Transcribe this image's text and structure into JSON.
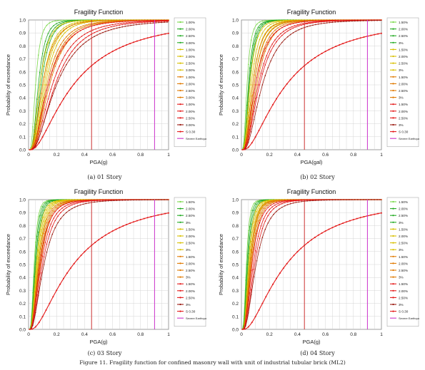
{
  "figure_caption": "Figure 11. Fragility function for confined masonry wall with unit of industrial tubular brick (ML2)",
  "panels": [
    {
      "id": "a",
      "caption": "(a)   01 Story"
    },
    {
      "id": "b",
      "caption": "(b)   02 Story"
    },
    {
      "id": "c",
      "caption": "(c)   03 Story"
    },
    {
      "id": "d",
      "caption": "(d)   04 Story"
    }
  ],
  "colors": {
    "light_green": "#7ad94a",
    "green": "#22aa22",
    "yellow": "#d8c000",
    "orange": "#e07a00",
    "red": "#e41818",
    "dark_red": "#9a1a10",
    "vertical_line": "#cc3333",
    "severe_earthquake": "#cc33cc",
    "grid": "#cccccc"
  },
  "chart_data": [
    {
      "type": "line",
      "title": "Fragility Function",
      "xlabel": "PGA(g)",
      "ylabel": "Probability of exceedance",
      "xlim": [
        0,
        1
      ],
      "ylim": [
        0,
        1
      ],
      "x_ticks": [
        "0",
        "0.2",
        "0.4",
        "0.6",
        "0.8",
        "1"
      ],
      "y_ticks": [
        "0.0",
        "0.1",
        "0.2",
        "0.3",
        "0.4",
        "0.5",
        "0.6",
        "0.7",
        "0.8",
        "0.9",
        "1.0"
      ],
      "grid": true,
      "legend_position": "right",
      "vertical_lines": [
        {
          "x": 0.45,
          "color_key": "vertical_line"
        },
        {
          "x": 0.9,
          "color_key": "severe_earthquake"
        }
      ],
      "series": [
        {
          "name": "1.00%",
          "color_key": "light_green",
          "median": 0.05,
          "beta": 0.55
        },
        {
          "name": "2.00%",
          "color_key": "green",
          "median": 0.07,
          "beta": 0.55
        },
        {
          "name": "2.50%",
          "color_key": "green",
          "median": 0.08,
          "beta": 0.55
        },
        {
          "name": "3.00%",
          "color_key": "green",
          "median": 0.09,
          "beta": 0.55
        },
        {
          "name": "1.00%",
          "color_key": "yellow",
          "median": 0.08,
          "beta": 0.6
        },
        {
          "name": "2.00%",
          "color_key": "yellow",
          "median": 0.1,
          "beta": 0.6
        },
        {
          "name": "2.50%",
          "color_key": "yellow",
          "median": 0.11,
          "beta": 0.6
        },
        {
          "name": "3.00%",
          "color_key": "yellow",
          "median": 0.12,
          "beta": 0.6
        },
        {
          "name": "1.00%",
          "color_key": "orange",
          "median": 0.1,
          "beta": 0.65
        },
        {
          "name": "2.00%",
          "color_key": "orange",
          "median": 0.13,
          "beta": 0.65
        },
        {
          "name": "2.50%",
          "color_key": "orange",
          "median": 0.14,
          "beta": 0.65
        },
        {
          "name": "3.00%",
          "color_key": "orange",
          "median": 0.15,
          "beta": 0.65
        },
        {
          "name": "1.00%",
          "color_key": "red",
          "median": 0.14,
          "beta": 0.7
        },
        {
          "name": "2.00%",
          "color_key": "red",
          "median": 0.17,
          "beta": 0.7
        },
        {
          "name": "2.50%",
          "color_key": "red",
          "median": 0.19,
          "beta": 0.7
        },
        {
          "name": "3.00%",
          "color_key": "dark_red",
          "median": 0.2,
          "beta": 0.75
        },
        {
          "name": "S 0.30",
          "color_key": "red",
          "median": 0.32,
          "beta": 0.9,
          "wide": true
        },
        {
          "name": "Severe Earthquake",
          "color_key": "severe_earthquake",
          "is_legend_only": true
        }
      ]
    },
    {
      "type": "line",
      "title": "Fragility Function",
      "xlabel": "PGA(gal)",
      "ylabel": "Probability of exceedance",
      "xlim": [
        0,
        1
      ],
      "ylim": [
        0,
        1
      ],
      "x_ticks": [
        "0",
        "0.2",
        "0.4",
        "0.6",
        "0.8",
        "1"
      ],
      "y_ticks": [
        "0.0",
        "0.1",
        "0.2",
        "0.3",
        "0.4",
        "0.5",
        "0.6",
        "0.7",
        "0.8",
        "0.9",
        "1.0"
      ],
      "grid": true,
      "legend_position": "right",
      "vertical_lines": [
        {
          "x": 0.45,
          "color_key": "vertical_line"
        },
        {
          "x": 0.9,
          "color_key": "severe_earthquake"
        }
      ],
      "series": [
        {
          "name": "1.50%",
          "color_key": "light_green",
          "median": 0.04,
          "beta": 0.55
        },
        {
          "name": "2.00%",
          "color_key": "green",
          "median": 0.05,
          "beta": 0.55
        },
        {
          "name": "2.50%",
          "color_key": "green",
          "median": 0.055,
          "beta": 0.55
        },
        {
          "name": "3%",
          "color_key": "green",
          "median": 0.06,
          "beta": 0.55
        },
        {
          "name": "1.50%",
          "color_key": "yellow",
          "median": 0.06,
          "beta": 0.6
        },
        {
          "name": "2.00%",
          "color_key": "yellow",
          "median": 0.07,
          "beta": 0.6
        },
        {
          "name": "2.50%",
          "color_key": "yellow",
          "median": 0.08,
          "beta": 0.6
        },
        {
          "name": "3%",
          "color_key": "yellow",
          "median": 0.09,
          "beta": 0.6
        },
        {
          "name": "1.50%",
          "color_key": "orange",
          "median": 0.08,
          "beta": 0.62
        },
        {
          "name": "2.00%",
          "color_key": "orange",
          "median": 0.09,
          "beta": 0.62
        },
        {
          "name": "2.50%",
          "color_key": "orange",
          "median": 0.1,
          "beta": 0.62
        },
        {
          "name": "3%",
          "color_key": "orange",
          "median": 0.11,
          "beta": 0.62
        },
        {
          "name": "1.50%",
          "color_key": "red",
          "median": 0.1,
          "beta": 0.68
        },
        {
          "name": "2.00%",
          "color_key": "red",
          "median": 0.12,
          "beta": 0.68
        },
        {
          "name": "2.50%",
          "color_key": "red",
          "median": 0.13,
          "beta": 0.68
        },
        {
          "name": "3%",
          "color_key": "dark_red",
          "median": 0.15,
          "beta": 0.7
        },
        {
          "name": "S 0.30",
          "color_key": "red",
          "median": 0.32,
          "beta": 0.9,
          "wide": true
        },
        {
          "name": "Severe Earthquake",
          "color_key": "severe_earthquake",
          "is_legend_only": true
        }
      ]
    },
    {
      "type": "line",
      "title": "Fragility Function",
      "xlabel": "PGA(g)",
      "ylabel": "Probability of exceedance",
      "xlim": [
        0,
        1
      ],
      "ylim": [
        0,
        1
      ],
      "x_ticks": [
        "0",
        "0.2",
        "0.4",
        "0.6",
        "0.8",
        "1"
      ],
      "y_ticks": [
        "0.0",
        "0.1",
        "0.2",
        "0.3",
        "0.4",
        "0.5",
        "0.6",
        "0.7",
        "0.8",
        "0.9",
        "1.0"
      ],
      "grid": true,
      "legend_position": "right",
      "vertical_lines": [
        {
          "x": 0.45,
          "color_key": "vertical_line"
        },
        {
          "x": 0.9,
          "color_key": "severe_earthquake"
        }
      ],
      "series": [
        {
          "name": "1.50%",
          "color_key": "light_green",
          "median": 0.04,
          "beta": 0.5
        },
        {
          "name": "2.00%",
          "color_key": "green",
          "median": 0.045,
          "beta": 0.5
        },
        {
          "name": "2.50%",
          "color_key": "green",
          "median": 0.05,
          "beta": 0.5
        },
        {
          "name": "3%",
          "color_key": "green",
          "median": 0.055,
          "beta": 0.5
        },
        {
          "name": "1.50%",
          "color_key": "yellow",
          "median": 0.055,
          "beta": 0.55
        },
        {
          "name": "2.00%",
          "color_key": "yellow",
          "median": 0.06,
          "beta": 0.55
        },
        {
          "name": "2.50%",
          "color_key": "yellow",
          "median": 0.065,
          "beta": 0.55
        },
        {
          "name": "3%",
          "color_key": "yellow",
          "median": 0.07,
          "beta": 0.55
        },
        {
          "name": "1.50%",
          "color_key": "orange",
          "median": 0.07,
          "beta": 0.6
        },
        {
          "name": "2.00%",
          "color_key": "orange",
          "median": 0.075,
          "beta": 0.6
        },
        {
          "name": "2.50%",
          "color_key": "orange",
          "median": 0.08,
          "beta": 0.6
        },
        {
          "name": "3%",
          "color_key": "orange",
          "median": 0.085,
          "beta": 0.6
        },
        {
          "name": "1.50%",
          "color_key": "red",
          "median": 0.08,
          "beta": 0.65
        },
        {
          "name": "2.00%",
          "color_key": "red",
          "median": 0.09,
          "beta": 0.65
        },
        {
          "name": "2.50%",
          "color_key": "red",
          "median": 0.1,
          "beta": 0.65
        },
        {
          "name": "3%",
          "color_key": "dark_red",
          "median": 0.11,
          "beta": 0.7
        },
        {
          "name": "S 0.30",
          "color_key": "red",
          "median": 0.32,
          "beta": 0.9,
          "wide": true
        },
        {
          "name": "Severe Earthquake",
          "color_key": "severe_earthquake",
          "is_legend_only": true
        }
      ]
    },
    {
      "type": "line",
      "title": "Fragility Function",
      "xlabel": "PGA(g)",
      "ylabel": "Probability of exceedance",
      "xlim": [
        0,
        1
      ],
      "ylim": [
        0,
        1
      ],
      "x_ticks": [
        "0",
        "0.2",
        "0.4",
        "0.6",
        "0.8",
        "1"
      ],
      "y_ticks": [
        "0.0",
        "0.1",
        "0.2",
        "0.3",
        "0.4",
        "0.5",
        "0.6",
        "0.7",
        "0.8",
        "0.9",
        "1.0"
      ],
      "grid": true,
      "legend_position": "right",
      "vertical_lines": [
        {
          "x": 0.45,
          "color_key": "vertical_line"
        },
        {
          "x": 0.9,
          "color_key": "severe_earthquake"
        }
      ],
      "series": [
        {
          "name": "1.50%",
          "color_key": "light_green",
          "median": 0.035,
          "beta": 0.5
        },
        {
          "name": "2.00%",
          "color_key": "green",
          "median": 0.04,
          "beta": 0.5
        },
        {
          "name": "2.50%",
          "color_key": "green",
          "median": 0.045,
          "beta": 0.5
        },
        {
          "name": "3%",
          "color_key": "green",
          "median": 0.05,
          "beta": 0.5
        },
        {
          "name": "1.50%",
          "color_key": "yellow",
          "median": 0.05,
          "beta": 0.52
        },
        {
          "name": "2.00%",
          "color_key": "yellow",
          "median": 0.055,
          "beta": 0.52
        },
        {
          "name": "2.50%",
          "color_key": "yellow",
          "median": 0.06,
          "beta": 0.52
        },
        {
          "name": "3%",
          "color_key": "yellow",
          "median": 0.065,
          "beta": 0.52
        },
        {
          "name": "1.50%",
          "color_key": "orange",
          "median": 0.06,
          "beta": 0.55
        },
        {
          "name": "2.00%",
          "color_key": "orange",
          "median": 0.065,
          "beta": 0.55
        },
        {
          "name": "2.50%",
          "color_key": "orange",
          "median": 0.07,
          "beta": 0.55
        },
        {
          "name": "3%",
          "color_key": "orange",
          "median": 0.075,
          "beta": 0.55
        },
        {
          "name": "1.50%",
          "color_key": "red",
          "median": 0.075,
          "beta": 0.6
        },
        {
          "name": "2.00%",
          "color_key": "red",
          "median": 0.085,
          "beta": 0.6
        },
        {
          "name": "2.50%",
          "color_key": "red",
          "median": 0.095,
          "beta": 0.6
        },
        {
          "name": "3%",
          "color_key": "dark_red",
          "median": 0.105,
          "beta": 0.65
        },
        {
          "name": "S 0.30",
          "color_key": "red",
          "median": 0.32,
          "beta": 0.9,
          "wide": true
        },
        {
          "name": "Severe Earthquake",
          "color_key": "severe_earthquake",
          "is_legend_only": true
        }
      ]
    }
  ]
}
